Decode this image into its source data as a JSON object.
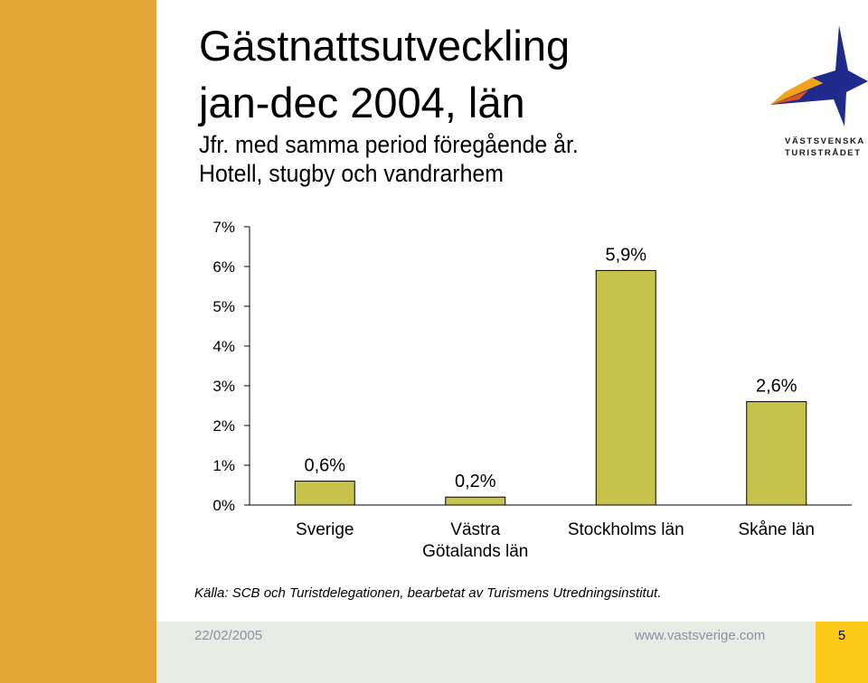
{
  "colors": {
    "side_bar": "#e3a438",
    "bottom_bar": "#e8ece4",
    "page_box": "#fcca17",
    "bar_fill": "#c7c24c",
    "footer_text": "#8a8fa6"
  },
  "header": {
    "title_line1": "Gästnattsutveckling",
    "title_line2": "jan-dec 2004, län",
    "subtitle_line1": "Jfr. med samma period föregående år.",
    "subtitle_line2": "Hotell, stugby och vandrarhem"
  },
  "logo": {
    "line1": "VÄSTSVENSKA",
    "line2": "TURISTRÅDET",
    "icon": "star-logo-icon"
  },
  "chart_data": {
    "type": "bar",
    "categories": [
      [
        "Sverige"
      ],
      [
        "Västra",
        "Götalands län"
      ],
      [
        "Stockholms län"
      ],
      [
        "Skåne län"
      ]
    ],
    "values": [
      0.6,
      0.2,
      5.9,
      2.6
    ],
    "data_labels": [
      "0,6%",
      "0,2%",
      "5,9%",
      "2,6%"
    ],
    "yticks": [
      "0%",
      "1%",
      "2%",
      "3%",
      "4%",
      "5%",
      "6%",
      "7%"
    ],
    "ylim": [
      0,
      7
    ],
    "grid": false,
    "legend": "none"
  },
  "source": "Källa: SCB och Turistdelegationen, bearbetat av Turismens Utredningsinstitut.",
  "footer": {
    "date": "22/02/2005",
    "url": "www.vastsverige.com",
    "page": "5"
  }
}
